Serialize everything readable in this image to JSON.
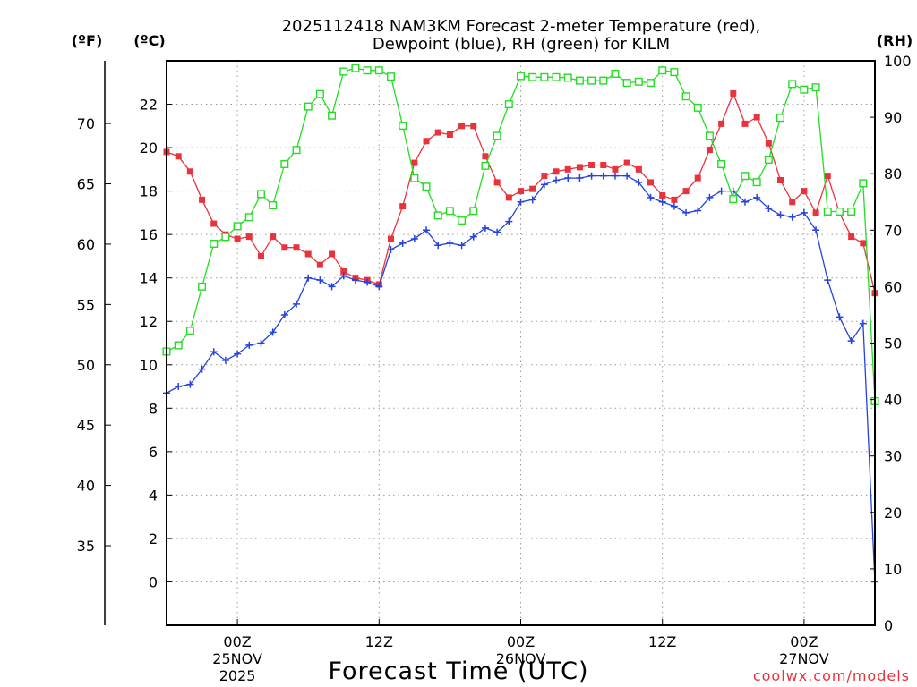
{
  "chart_data": {
    "type": "line",
    "title_line1": "2025112418 NAM3KM Forecast 2-meter Temperature (red),",
    "title_line2": "Dewpoint (blue), RH (green) for KILM",
    "xlabel": "Forecast Time (UTC)",
    "credit": "coolwx.com/models",
    "unit_labels": {
      "fahrenheit": "(ºF)",
      "celsius": "(ºC)",
      "rh": "(RH)"
    },
    "x_range_hours": [
      0,
      60
    ],
    "celsius_axis": {
      "ylim": [
        -2,
        24
      ],
      "ticks": [
        0,
        2,
        4,
        6,
        8,
        10,
        12,
        14,
        16,
        18,
        20,
        22
      ]
    },
    "fahrenheit_axis": {
      "ticks": [
        35,
        40,
        45,
        50,
        55,
        60,
        65,
        70
      ]
    },
    "rh_axis": {
      "ylim": [
        0,
        100
      ],
      "ticks": [
        0,
        10,
        20,
        30,
        40,
        50,
        60,
        70,
        80,
        90,
        100
      ]
    },
    "time_ticks": [
      {
        "hour": 6,
        "line1": "00Z",
        "line2": "25NOV",
        "line3": "2025"
      },
      {
        "hour": 18,
        "line1": "12Z",
        "line2": "",
        "line3": ""
      },
      {
        "hour": 30,
        "line1": "00Z",
        "line2": "26NOV",
        "line3": ""
      },
      {
        "hour": 42,
        "line1": "12Z",
        "line2": "",
        "line3": ""
      },
      {
        "hour": 54,
        "line1": "00Z",
        "line2": "27NOV",
        "line3": ""
      }
    ],
    "series": [
      {
        "name": "Temperature",
        "unit": "C",
        "color": "#e8323c",
        "marker": "filled-square",
        "hours": [
          0,
          1,
          2,
          3,
          4,
          5,
          6,
          7,
          8,
          9,
          10,
          11,
          12,
          13,
          14,
          15,
          16,
          17,
          18,
          19,
          20,
          21,
          22,
          23,
          24,
          25,
          26,
          27,
          28,
          29,
          30,
          31,
          32,
          33,
          34,
          35,
          36,
          37,
          38,
          39,
          40,
          41,
          42,
          43,
          44,
          45,
          46,
          47,
          48,
          49,
          50,
          51,
          52,
          53,
          54,
          55,
          56,
          57,
          58,
          59,
          60
        ],
        "values": [
          19.8,
          19.6,
          18.9,
          17.6,
          16.5,
          16.0,
          15.8,
          15.9,
          15.0,
          15.9,
          15.4,
          15.4,
          15.1,
          14.6,
          15.1,
          14.3,
          14.0,
          13.9,
          13.7,
          15.8,
          17.3,
          19.3,
          20.3,
          20.7,
          20.6,
          21.0,
          21.0,
          19.6,
          18.4,
          17.7,
          18.0,
          18.1,
          18.7,
          18.9,
          19.0,
          19.1,
          19.2,
          19.2,
          19.0,
          19.3,
          19.0,
          18.4,
          17.8,
          17.6,
          18.0,
          18.6,
          19.9,
          21.1,
          22.5,
          21.1,
          21.4,
          20.2,
          18.5,
          17.5,
          18.0,
          17.0,
          18.7,
          17.0,
          15.9,
          15.6,
          13.3
        ]
      },
      {
        "name": "Dewpoint",
        "unit": "C",
        "color": "#2442e0",
        "marker": "plus",
        "hours": [
          0,
          1,
          2,
          3,
          4,
          5,
          6,
          7,
          8,
          9,
          10,
          11,
          12,
          13,
          14,
          15,
          16,
          17,
          18,
          19,
          20,
          21,
          22,
          23,
          24,
          25,
          26,
          27,
          28,
          29,
          30,
          31,
          32,
          33,
          34,
          35,
          36,
          37,
          38,
          39,
          40,
          41,
          42,
          43,
          44,
          45,
          46,
          47,
          48,
          49,
          50,
          51,
          52,
          53,
          54,
          55,
          56,
          57,
          58,
          59,
          60
        ],
        "values": [
          8.7,
          9.0,
          9.1,
          9.8,
          10.6,
          10.2,
          10.5,
          10.9,
          11.0,
          11.5,
          12.3,
          12.8,
          14.0,
          13.9,
          13.6,
          14.1,
          13.9,
          13.8,
          13.6,
          15.3,
          15.6,
          15.8,
          16.2,
          15.5,
          15.6,
          15.5,
          15.9,
          16.3,
          16.1,
          16.6,
          17.5,
          17.6,
          18.3,
          18.5,
          18.6,
          18.6,
          18.7,
          18.7,
          18.7,
          18.7,
          18.4,
          17.7,
          17.5,
          17.3,
          17.0,
          17.1,
          17.7,
          18.0,
          18.0,
          17.5,
          17.7,
          17.2,
          16.9,
          16.8,
          17.0,
          16.2,
          13.9,
          12.2,
          11.1,
          11.9,
          0.0
        ]
      },
      {
        "name": "RH",
        "unit": "%",
        "color": "#22dd22",
        "marker": "open-square",
        "hours": [
          0,
          1,
          2,
          3,
          4,
          5,
          6,
          7,
          8,
          9,
          10,
          11,
          12,
          13,
          14,
          15,
          16,
          17,
          18,
          19,
          20,
          21,
          22,
          23,
          24,
          25,
          26,
          27,
          28,
          29,
          30,
          31,
          32,
          33,
          34,
          35,
          36,
          37,
          38,
          39,
          40,
          41,
          42,
          43,
          44,
          45,
          46,
          47,
          48,
          49,
          50,
          51,
          52,
          53,
          54,
          55,
          56,
          57,
          58,
          59,
          60
        ],
        "values": [
          48.5,
          49.6,
          52.2,
          60.0,
          67.6,
          68.8,
          70.7,
          72.3,
          76.4,
          74.4,
          81.7,
          84.2,
          91.9,
          94.1,
          90.3,
          98.1,
          98.7,
          98.3,
          98.3,
          97.2,
          88.5,
          79.2,
          77.7,
          72.6,
          73.4,
          71.7,
          73.4,
          81.4,
          86.7,
          92.3,
          97.3,
          97.1,
          97.1,
          97.1,
          97.0,
          96.5,
          96.5,
          96.5,
          97.7,
          96.1,
          96.3,
          96.1,
          98.3,
          98.0,
          93.7,
          91.7,
          86.7,
          81.7,
          75.5,
          79.6,
          78.5,
          82.5,
          89.9,
          95.9,
          94.9,
          95.3,
          73.3,
          73.3,
          73.3,
          78.3,
          39.7
        ]
      }
    ]
  }
}
